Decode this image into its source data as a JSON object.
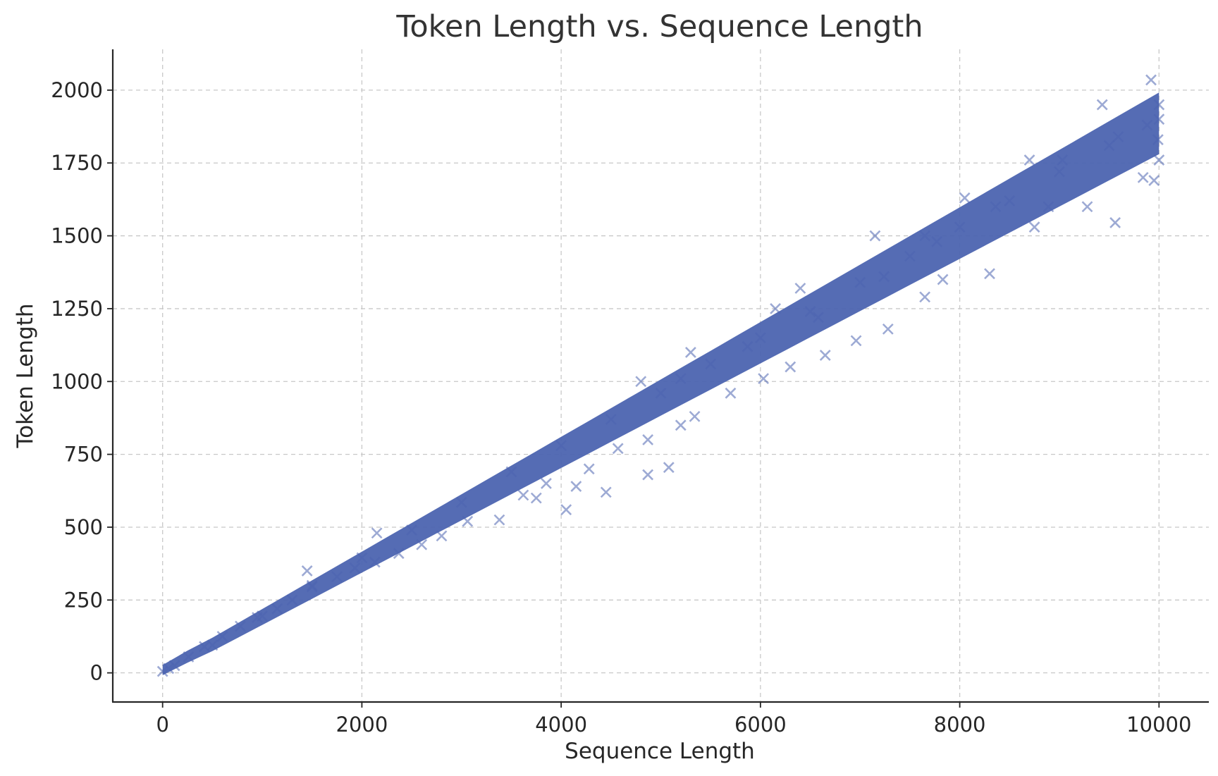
{
  "chart_data": {
    "type": "scatter",
    "title": "Token Length vs. Sequence Length",
    "xlabel": "Sequence Length",
    "ylabel": "Token Length",
    "xlim": [
      -500,
      10500
    ],
    "ylim": [
      -100,
      2140
    ],
    "xticks": [
      0,
      2000,
      4000,
      6000,
      8000,
      10000
    ],
    "yticks": [
      0,
      250,
      500,
      750,
      1000,
      1250,
      1500,
      1750,
      2000
    ],
    "xtick_labels": [
      "0",
      "2000",
      "4000",
      "6000",
      "8000",
      "10000"
    ],
    "ytick_labels": [
      "0",
      "250",
      "500",
      "750",
      "1000",
      "1250",
      "1500",
      "1750",
      "2000"
    ],
    "grid": true,
    "marker": "x",
    "color": "#4C64B0",
    "series": [
      {
        "points": [
          [
            0,
            5
          ],
          [
            500,
            95
          ],
          [
            1000,
            195
          ],
          [
            1500,
            295
          ],
          [
            2000,
            395
          ],
          [
            2500,
            490
          ],
          [
            3000,
            585
          ],
          [
            3500,
            690
          ],
          [
            4000,
            780
          ],
          [
            4500,
            870
          ],
          [
            5000,
            960
          ],
          [
            5500,
            1060
          ],
          [
            6000,
            1150
          ],
          [
            6500,
            1240
          ],
          [
            7000,
            1340
          ],
          [
            7500,
            1430
          ],
          [
            8000,
            1530
          ],
          [
            8500,
            1620
          ],
          [
            9000,
            1720
          ],
          [
            9500,
            1810
          ],
          [
            10000,
            1900
          ],
          [
            1450,
            350
          ],
          [
            2150,
            480
          ],
          [
            3750,
            600
          ],
          [
            4050,
            560
          ],
          [
            4450,
            620
          ],
          [
            4870,
            680
          ],
          [
            5080,
            705
          ],
          [
            5300,
            1100
          ],
          [
            6150,
            1250
          ],
          [
            6400,
            1320
          ],
          [
            7150,
            1500
          ],
          [
            7650,
            1500
          ],
          [
            8050,
            1630
          ],
          [
            8700,
            1760
          ],
          [
            9430,
            1950
          ],
          [
            9920,
            2035
          ],
          [
            9950,
            1690
          ],
          [
            9840,
            1700
          ],
          [
            9560,
            1545
          ],
          [
            9280,
            1600
          ],
          [
            8890,
            1600
          ],
          [
            8750,
            1530
          ],
          [
            8300,
            1370
          ],
          [
            7830,
            1350
          ],
          [
            7650,
            1290
          ],
          [
            7280,
            1180
          ],
          [
            6960,
            1140
          ],
          [
            6650,
            1090
          ],
          [
            6300,
            1050
          ],
          [
            6030,
            1010
          ],
          [
            5700,
            960
          ],
          [
            5340,
            880
          ],
          [
            5200,
            850
          ],
          [
            4870,
            800
          ],
          [
            4570,
            770
          ],
          [
            4280,
            700
          ],
          [
            4150,
            640
          ],
          [
            3850,
            650
          ],
          [
            3620,
            610
          ],
          [
            3380,
            525
          ],
          [
            3060,
            520
          ],
          [
            2800,
            470
          ],
          [
            2600,
            440
          ],
          [
            2370,
            410
          ],
          [
            2130,
            380
          ],
          [
            1930,
            360
          ],
          [
            1750,
            330
          ],
          [
            1500,
            300
          ],
          [
            1300,
            250
          ],
          [
            1150,
            220
          ],
          [
            950,
            190
          ],
          [
            780,
            160
          ],
          [
            600,
            125
          ],
          [
            420,
            90
          ],
          [
            260,
            55
          ],
          [
            120,
            25
          ],
          [
            60,
            15
          ],
          [
            4800,
            1000
          ],
          [
            5200,
            1010
          ],
          [
            5870,
            1120
          ],
          [
            6580,
            1220
          ],
          [
            7240,
            1360
          ],
          [
            7770,
            1480
          ],
          [
            8360,
            1600
          ],
          [
            9030,
            1760
          ],
          [
            9590,
            1840
          ],
          [
            9880,
            1880
          ],
          [
            10000,
            1950
          ],
          [
            10000,
            1760
          ],
          [
            9990,
            1830
          ]
        ]
      }
    ]
  }
}
